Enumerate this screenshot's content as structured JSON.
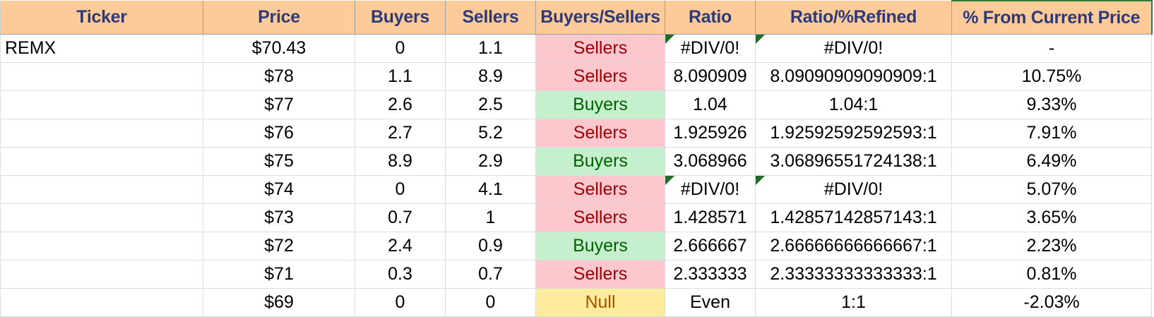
{
  "headers": {
    "ticker": "Ticker",
    "price": "Price",
    "buyers": "Buyers",
    "sellers": "Sellers",
    "buyers_sellers": "Buyers/Sellers",
    "ratio": "Ratio",
    "ratio_refined": "Ratio/%Refined",
    "pct_from_current": "% From Current Price"
  },
  "colors": {
    "header_bg": "#fccb99",
    "header_text": "#2e3a78",
    "sellers_bg": "#fdc7ce",
    "sellers_text": "#9c0006",
    "buyers_bg": "#c6efce",
    "buyers_text": "#006100",
    "null_bg": "#ffeb9c",
    "null_text": "#9c5700"
  },
  "rows": [
    {
      "ticker": "REMX",
      "price": "$70.43",
      "buyers": "0",
      "sellers": "1.1",
      "buyers_sellers": "Sellers",
      "ratio": "#DIV/0!",
      "ratio_refined": "#DIV/0!",
      "pct_from_current": "-"
    },
    {
      "ticker": "",
      "price": "$78",
      "buyers": "1.1",
      "sellers": "8.9",
      "buyers_sellers": "Sellers",
      "ratio": "8.090909",
      "ratio_refined": "8.09090909090909:1",
      "pct_from_current": "10.75%"
    },
    {
      "ticker": "",
      "price": "$77",
      "buyers": "2.6",
      "sellers": "2.5",
      "buyers_sellers": "Buyers",
      "ratio": "1.04",
      "ratio_refined": "1.04:1",
      "pct_from_current": "9.33%"
    },
    {
      "ticker": "",
      "price": "$76",
      "buyers": "2.7",
      "sellers": "5.2",
      "buyers_sellers": "Sellers",
      "ratio": "1.925926",
      "ratio_refined": "1.92592592592593:1",
      "pct_from_current": "7.91%"
    },
    {
      "ticker": "",
      "price": "$75",
      "buyers": "8.9",
      "sellers": "2.9",
      "buyers_sellers": "Buyers",
      "ratio": "3.068966",
      "ratio_refined": "3.06896551724138:1",
      "pct_from_current": "6.49%"
    },
    {
      "ticker": "",
      "price": "$74",
      "buyers": "0",
      "sellers": "4.1",
      "buyers_sellers": "Sellers",
      "ratio": "#DIV/0!",
      "ratio_refined": "#DIV/0!",
      "pct_from_current": "5.07%"
    },
    {
      "ticker": "",
      "price": "$73",
      "buyers": "0.7",
      "sellers": "1",
      "buyers_sellers": "Sellers",
      "ratio": "1.428571",
      "ratio_refined": "1.42857142857143:1",
      "pct_from_current": "3.65%"
    },
    {
      "ticker": "",
      "price": "$72",
      "buyers": "2.4",
      "sellers": "0.9",
      "buyers_sellers": "Buyers",
      "ratio": "2.666667",
      "ratio_refined": "2.66666666666667:1",
      "pct_from_current": "2.23%"
    },
    {
      "ticker": "",
      "price": "$71",
      "buyers": "0.3",
      "sellers": "0.7",
      "buyers_sellers": "Sellers",
      "ratio": "2.333333",
      "ratio_refined": "2.33333333333333:1",
      "pct_from_current": "0.81%"
    },
    {
      "ticker": "",
      "price": "$69",
      "buyers": "0",
      "sellers": "0",
      "buyers_sellers": "Null",
      "ratio": "Even",
      "ratio_refined": "1:1",
      "pct_from_current": "-2.03%"
    }
  ]
}
